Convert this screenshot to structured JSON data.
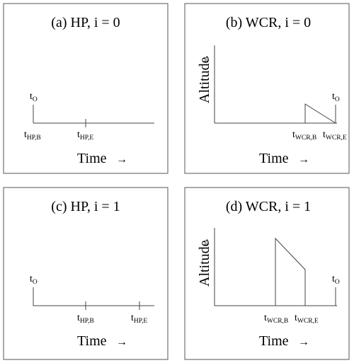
{
  "panels": [
    {
      "title": "(a) HP, i = 0",
      "xlabel": "Time",
      "ylabel": "",
      "t_origin": {
        "main": "t",
        "sub": "O"
      },
      "ticks": [
        {
          "main": "t",
          "sub": "HP,B"
        },
        {
          "main": "t",
          "sub": "HP,E"
        }
      ]
    },
    {
      "title": "(b) WCR, i = 0",
      "xlabel": "Time",
      "ylabel": "Altitude",
      "t_origin": {
        "main": "t",
        "sub": "O"
      },
      "ticks": [
        {
          "main": "t",
          "sub": "WCR,B"
        },
        {
          "main": "t",
          "sub": "WCR,E"
        }
      ]
    },
    {
      "title": "(c) HP, i = 1",
      "xlabel": "Time",
      "ylabel": "",
      "t_origin": {
        "main": "t",
        "sub": "O"
      },
      "ticks": [
        {
          "main": "t",
          "sub": "HP,B"
        },
        {
          "main": "t",
          "sub": "HP,E"
        }
      ]
    },
    {
      "title": "(d) WCR, i = 1",
      "xlabel": "Time",
      "ylabel": "Altitude",
      "t_origin": {
        "main": "t",
        "sub": "O"
      },
      "ticks": [
        {
          "main": "t",
          "sub": "WCR,B"
        },
        {
          "main": "t",
          "sub": "WCR,E"
        }
      ]
    }
  ],
  "arrow_glyph": "→",
  "up_arrow_glyph": "→"
}
